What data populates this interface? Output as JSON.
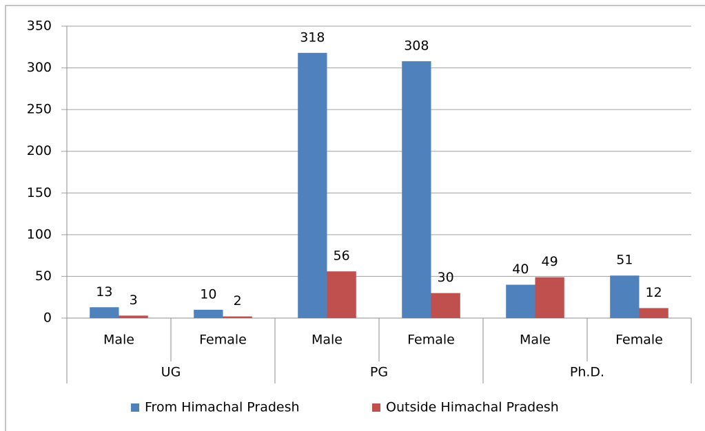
{
  "chart_data": {
    "type": "bar",
    "categories": [
      "Male",
      "Female",
      "Male",
      "Female",
      "Male",
      "Female"
    ],
    "groups": [
      "UG",
      "PG",
      "Ph.D."
    ],
    "series": [
      {
        "name": "From Himachal Pradesh",
        "color": "#4f81bd",
        "values": [
          13,
          10,
          318,
          308,
          40,
          51
        ]
      },
      {
        "name": "Outside Himachal Pradesh",
        "color": "#c0504d",
        "values": [
          3,
          2,
          56,
          30,
          49,
          12
        ]
      }
    ],
    "ylim": [
      0,
      350
    ],
    "yticks": [
      0,
      50,
      100,
      150,
      200,
      250,
      300,
      350
    ],
    "grid": true,
    "legend": "bottom"
  }
}
